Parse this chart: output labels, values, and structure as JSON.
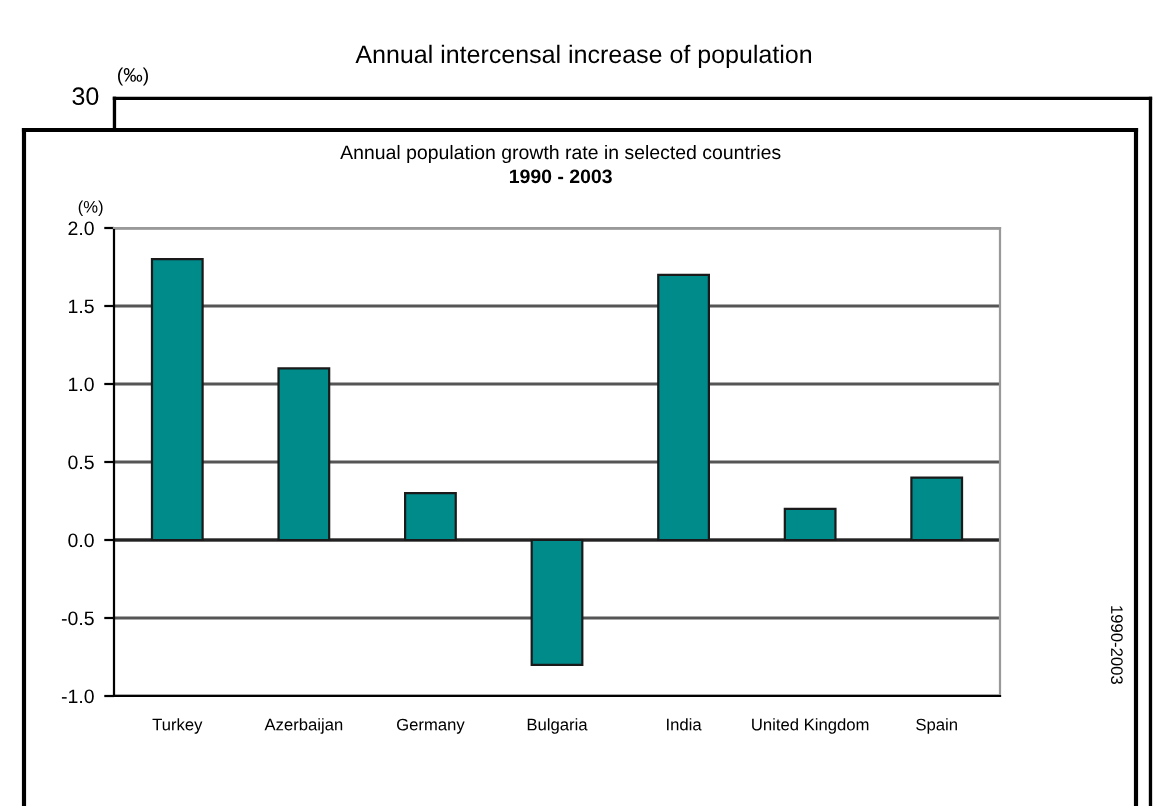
{
  "chart_data": {
    "type": "bar",
    "title": "Annual population growth rate in selected countries",
    "subtitle": "1990 - 2003",
    "ylabel": "(%)",
    "categories": [
      "Turkey",
      "Azerbaijan",
      "Germany",
      "Bulgaria",
      "India",
      "United Kingdom",
      "Spain"
    ],
    "values": [
      1.8,
      1.1,
      0.3,
      -0.8,
      1.7,
      0.2,
      0.4
    ],
    "color": "#008b8b",
    "ylim": [
      -1.0,
      2.0
    ],
    "yticks": [
      {
        "value": -1.0,
        "label": "-1.0"
      },
      {
        "value": -0.5,
        "label": "-0.5"
      },
      {
        "value": 0.0,
        "label": "0.0"
      },
      {
        "value": 0.5,
        "label": "0.5"
      },
      {
        "value": 1.0,
        "label": "1.0"
      },
      {
        "value": 1.5,
        "label": "1.5"
      },
      {
        "value": 2.0,
        "label": "2.0"
      }
    ],
    "grid": "y",
    "annotations": [
      "Annual intercensal increase of population",
      "(‰)",
      "30",
      "1990-2003"
    ]
  }
}
